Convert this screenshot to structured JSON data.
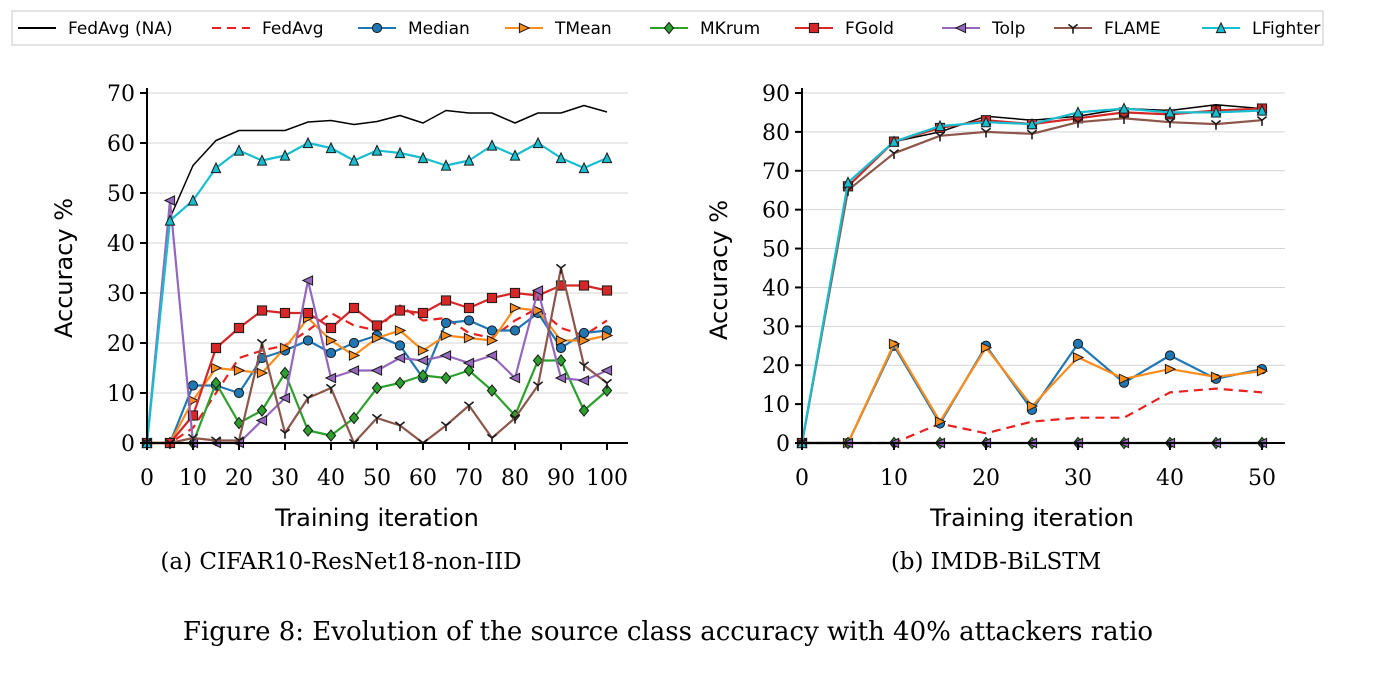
{
  "figure_caption": "Figure 8: Evolution of the source class accuracy with 40% attackers ratio",
  "legend": [
    {
      "name": "FedAvg (NA)",
      "color": "#000000",
      "dash": "",
      "marker": "none"
    },
    {
      "name": "FedAvg",
      "color": "#e8201e",
      "dash": "9,6",
      "marker": "none"
    },
    {
      "name": "Median",
      "color": "#1f77b4",
      "dash": "",
      "marker": "circle"
    },
    {
      "name": "TMean",
      "color": "#ff8c1a",
      "dash": "",
      "marker": "triangle-right"
    },
    {
      "name": "MKrum",
      "color": "#2ca02c",
      "dash": "",
      "marker": "diamond"
    },
    {
      "name": "FGold",
      "color": "#d62728",
      "dash": "",
      "marker": "square"
    },
    {
      "name": "Tolp",
      "color": "#9467bd",
      "dash": "",
      "marker": "triangle-left"
    },
    {
      "name": "FLAME",
      "color": "#8c564b",
      "dash": "",
      "marker": "tri"
    },
    {
      "name": "LFighter",
      "color": "#17becf",
      "dash": "",
      "marker": "triangle-up"
    }
  ],
  "chart_data": [
    {
      "type": "line",
      "caption": "(a) CIFAR10-ResNet18-non-IID",
      "xlabel": "Training iteration",
      "ylabel": "Accuracy %",
      "xlim": [
        0,
        100
      ],
      "ylim": [
        0,
        70
      ],
      "xticks": [
        0,
        10,
        20,
        30,
        40,
        50,
        60,
        70,
        80,
        90,
        100
      ],
      "yticks": [
        0,
        10,
        20,
        30,
        40,
        50,
        60,
        70
      ],
      "grid": "horizontal",
      "x": [
        0,
        5,
        10,
        15,
        20,
        25,
        30,
        35,
        40,
        45,
        50,
        55,
        60,
        65,
        70,
        75,
        80,
        85,
        90,
        95,
        100
      ],
      "series": [
        {
          "name": "FedAvg (NA)",
          "values": [
            0,
            45,
            55.5,
            60.5,
            62.5,
            62.5,
            62.5,
            64.2,
            64.5,
            63.7,
            64.3,
            65.5,
            64,
            66.5,
            66,
            66,
            64,
            66,
            66,
            67.5,
            66.2
          ]
        },
        {
          "name": "FedAvg",
          "values": [
            0,
            0,
            3,
            10,
            17,
            18.5,
            19.5,
            22.5,
            26,
            23.5,
            22.5,
            27.5,
            24.5,
            25,
            22,
            21,
            24.5,
            27,
            23,
            21.5,
            24.5
          ]
        },
        {
          "name": "Median",
          "values": [
            0,
            0,
            11.5,
            11.5,
            10,
            17,
            18.5,
            20.5,
            18,
            20,
            21.5,
            19.5,
            13,
            24,
            24.5,
            22.5,
            22.5,
            26,
            19,
            22,
            22.5
          ]
        },
        {
          "name": "TMean",
          "values": [
            0,
            0,
            8.5,
            15,
            14.5,
            14,
            19,
            25,
            20.5,
            17.5,
            21,
            22.5,
            18.5,
            21.5,
            21,
            20.5,
            27,
            26.5,
            20.5,
            20.5,
            21.5
          ]
        },
        {
          "name": "MKrum",
          "values": [
            0,
            0,
            0,
            12,
            4,
            6.5,
            14,
            2.5,
            1.5,
            5,
            11,
            12,
            13.5,
            13,
            14.5,
            10.5,
            5.5,
            16.5,
            16.5,
            6.5,
            10.5
          ]
        },
        {
          "name": "FGold",
          "values": [
            0,
            0,
            5.5,
            19,
            23,
            26.5,
            26,
            26,
            23,
            27,
            23.5,
            26.5,
            26,
            28.5,
            27,
            29,
            30,
            29.5,
            31.5,
            31.5,
            30.5
          ]
        },
        {
          "name": "Tolp",
          "values": [
            0,
            48.5,
            0,
            0,
            0,
            4.5,
            9,
            32.5,
            13,
            14.5,
            14.5,
            17,
            16.5,
            17.5,
            16,
            17.5,
            13,
            30.5,
            13,
            12.5,
            14.5
          ]
        },
        {
          "name": "FLAME",
          "values": [
            0,
            0,
            1,
            0.5,
            0.5,
            20,
            2,
            9,
            11,
            0,
            5,
            3.5,
            0,
            3.5,
            7.5,
            1,
            5,
            11.5,
            35,
            15.5,
            12
          ]
        },
        {
          "name": "LFighter",
          "values": [
            0,
            44.5,
            48.5,
            55,
            58.5,
            56.5,
            57.5,
            60,
            59,
            56.5,
            58.5,
            58,
            57,
            55.5,
            56.5,
            59.5,
            57.5,
            60,
            57,
            55,
            57
          ]
        }
      ]
    },
    {
      "type": "line",
      "caption": "(b) IMDB-BiLSTM",
      "xlabel": "Training iteration",
      "ylabel": "Accuracy %",
      "xlim": [
        0,
        50
      ],
      "ylim": [
        0,
        90
      ],
      "xticks": [
        0,
        10,
        20,
        30,
        40,
        50
      ],
      "yticks": [
        0,
        10,
        20,
        30,
        40,
        50,
        60,
        70,
        80,
        90
      ],
      "grid": "horizontal",
      "x": [
        0,
        5,
        10,
        15,
        20,
        25,
        30,
        35,
        40,
        45,
        50
      ],
      "series": [
        {
          "name": "FedAvg (NA)",
          "values": [
            0,
            66,
            77.5,
            80,
            84,
            83,
            84,
            86,
            85.5,
            87,
            86
          ]
        },
        {
          "name": "FedAvg",
          "values": [
            0,
            0,
            0,
            5,
            2.5,
            5.5,
            6.5,
            6.5,
            13,
            14,
            13
          ]
        },
        {
          "name": "Median",
          "values": [
            0,
            0,
            25,
            5,
            25,
            8.5,
            25.5,
            15.5,
            22.5,
            16.5,
            19
          ]
        },
        {
          "name": "TMean",
          "values": [
            0,
            0,
            25.5,
            5.5,
            24.5,
            9.5,
            22,
            16.5,
            19,
            17,
            18.5
          ]
        },
        {
          "name": "MKrum",
          "values": [
            0,
            0,
            0,
            0,
            0,
            0,
            0,
            0,
            0,
            0,
            0
          ]
        },
        {
          "name": "FGold",
          "values": [
            0,
            66,
            77.5,
            81,
            83,
            82,
            83.5,
            85,
            84.5,
            85.5,
            86
          ]
        },
        {
          "name": "Tolp",
          "values": [
            0,
            0,
            0,
            0,
            0,
            0,
            0,
            0,
            0,
            0,
            0
          ]
        },
        {
          "name": "FLAME",
          "values": [
            0,
            65,
            74.5,
            79,
            80,
            79.5,
            82.5,
            83.5,
            82.5,
            82,
            83
          ]
        },
        {
          "name": "LFighter",
          "values": [
            0,
            67,
            77.5,
            81.5,
            82.5,
            82,
            85,
            86,
            85,
            85,
            85.5
          ]
        }
      ]
    }
  ]
}
